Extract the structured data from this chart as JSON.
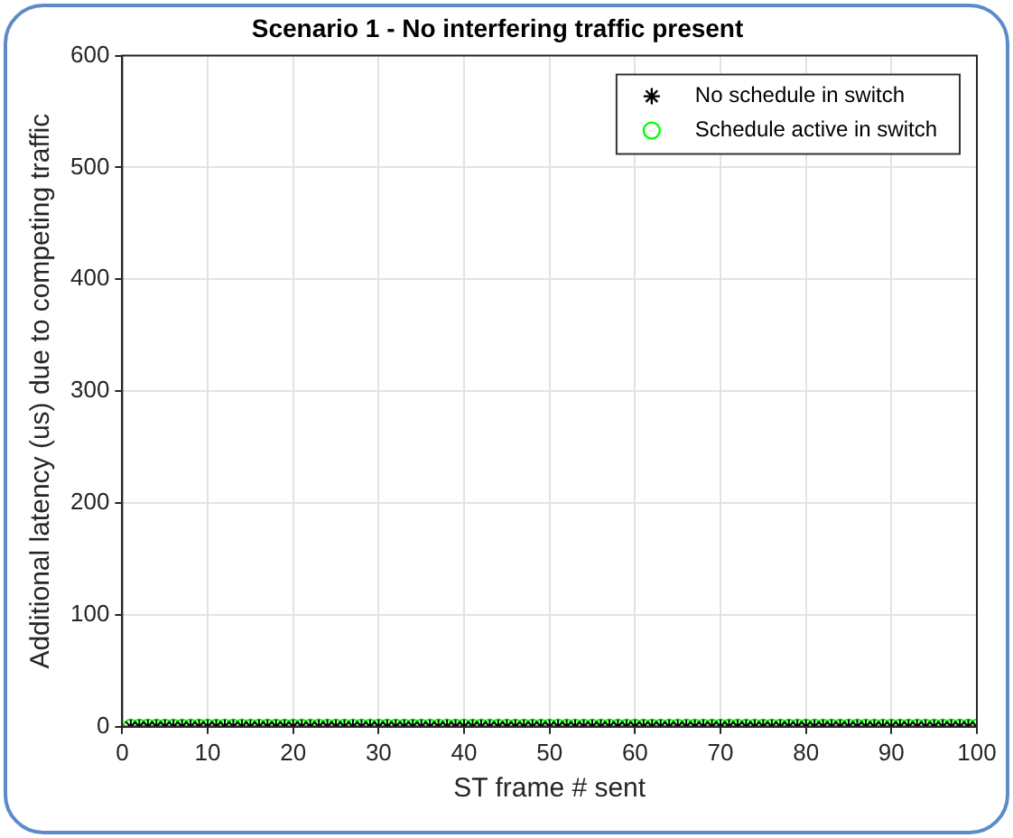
{
  "chart_data": {
    "type": "scatter",
    "title": "Scenario 1 - No interfering traffic present",
    "xlabel": "ST frame # sent",
    "ylabel": "Additional latency (us) due to competing traffic",
    "x": [
      1,
      2,
      3,
      4,
      5,
      6,
      7,
      8,
      9,
      10,
      11,
      12,
      13,
      14,
      15,
      16,
      17,
      18,
      19,
      20,
      21,
      22,
      23,
      24,
      25,
      26,
      27,
      28,
      29,
      30,
      31,
      32,
      33,
      34,
      35,
      36,
      37,
      38,
      39,
      40,
      41,
      42,
      43,
      44,
      45,
      46,
      47,
      48,
      49,
      50,
      51,
      52,
      53,
      54,
      55,
      56,
      57,
      58,
      59,
      60,
      61,
      62,
      63,
      64,
      65,
      66,
      67,
      68,
      69,
      70,
      71,
      72,
      73,
      74,
      75,
      76,
      77,
      78,
      79,
      80,
      81,
      82,
      83,
      84,
      85,
      86,
      87,
      88,
      89,
      90,
      91,
      92,
      93,
      94,
      95,
      96,
      97,
      98,
      99,
      100
    ],
    "series": [
      {
        "name": "No schedule in switch",
        "color": "#000000",
        "marker": "cross",
        "values": [
          0,
          0,
          0,
          0,
          0,
          0,
          0,
          0,
          0,
          0,
          0,
          0,
          0,
          0,
          0,
          0,
          0,
          0,
          0,
          0,
          0,
          0,
          0,
          0,
          0,
          0,
          0,
          0,
          0,
          0,
          0,
          0,
          0,
          0,
          0,
          0,
          0,
          0,
          0,
          0,
          0,
          0,
          0,
          0,
          0,
          0,
          0,
          0,
          0,
          0,
          0,
          0,
          0,
          0,
          0,
          0,
          0,
          0,
          0,
          0,
          0,
          0,
          0,
          0,
          0,
          0,
          0,
          0,
          0,
          0,
          0,
          0,
          0,
          0,
          0,
          0,
          0,
          0,
          0,
          0,
          0,
          0,
          0,
          0,
          0,
          0,
          0,
          0,
          0,
          0,
          0,
          0,
          0,
          0,
          0,
          0,
          0,
          0,
          0,
          0
        ]
      },
      {
        "name": "Schedule active in switch",
        "color": "#00ff00",
        "marker": "circle",
        "values": [
          0,
          0,
          0,
          0,
          0,
          0,
          0,
          0,
          0,
          0,
          0,
          0,
          0,
          0,
          0,
          0,
          0,
          0,
          0,
          0,
          0,
          0,
          0,
          0,
          0,
          0,
          0,
          0,
          0,
          0,
          0,
          0,
          0,
          0,
          0,
          0,
          0,
          0,
          0,
          0,
          0,
          0,
          0,
          0,
          0,
          0,
          0,
          0,
          0,
          0,
          0,
          0,
          0,
          0,
          0,
          0,
          0,
          0,
          0,
          0,
          0,
          0,
          0,
          0,
          0,
          0,
          0,
          0,
          0,
          0,
          0,
          0,
          0,
          0,
          0,
          0,
          0,
          0,
          0,
          0,
          0,
          0,
          0,
          0,
          0,
          0,
          0,
          0,
          0,
          0,
          0,
          0,
          0,
          0,
          0,
          0,
          0,
          0,
          0,
          0
        ]
      }
    ],
    "xlim": [
      0,
      100
    ],
    "xticks": [
      0,
      10,
      20,
      30,
      40,
      50,
      60,
      70,
      80,
      90,
      100
    ],
    "ylim": [
      0,
      600
    ],
    "yticks": [
      0,
      100,
      200,
      300,
      400,
      500,
      600
    ],
    "grid": true,
    "legend": "top right"
  }
}
